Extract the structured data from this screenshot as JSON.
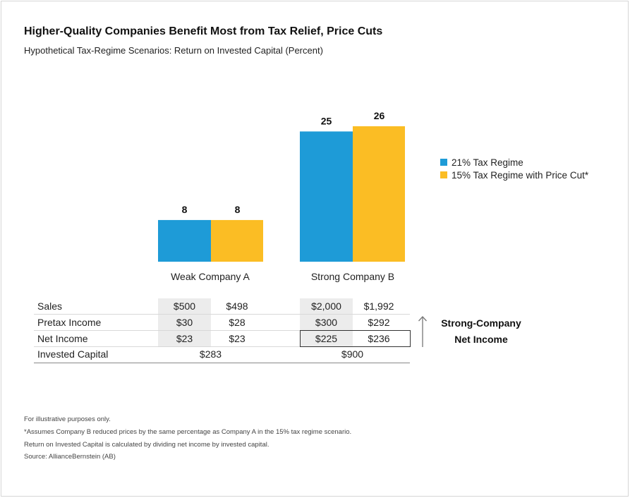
{
  "title": "Higher-Quality Companies Benefit Most from Tax Relief, Price Cuts",
  "subtitle": "Hypothetical Tax-Regime Scenarios: Return on Invested Capital (Percent)",
  "colors": {
    "tax21": "#1e9bd7",
    "tax15": "#fbbd24"
  },
  "chart_data": {
    "type": "bar",
    "categories": [
      "Weak Company A",
      "Strong Company B"
    ],
    "series": [
      {
        "name": "21% Tax Regime",
        "values": [
          8,
          25
        ]
      },
      {
        "name": "15% Tax Regime with Price Cut*",
        "values": [
          8,
          26
        ]
      }
    ],
    "ylim": [
      0,
      26
    ],
    "legend": "right"
  },
  "table": {
    "rows": [
      {
        "label": "Sales",
        "a21": "$500",
        "a15": "$498",
        "b21": "$2,000",
        "b15": "$1,992"
      },
      {
        "label": "Pretax Income",
        "a21": "$30",
        "a15": "$28",
        "b21": "$300",
        "b15": "$292"
      },
      {
        "label": "Net Income",
        "a21": "$23",
        "a15": "$23",
        "b21": "$225",
        "b15": "$236"
      }
    ],
    "capital": {
      "label": "Invested Capital",
      "a": "$283",
      "b": "$900"
    }
  },
  "annotation": {
    "line1": "Strong-Company",
    "line2": "Net Income"
  },
  "footnotes": [
    "For illustrative purposes only.",
    "*Assumes Company B reduced prices by the same percentage as Company A in the 15% tax regime scenario.",
    "Return on Invested Capital is calculated by dividing net income by invested capital.",
    "Source: AllianceBernstein (AB)"
  ]
}
